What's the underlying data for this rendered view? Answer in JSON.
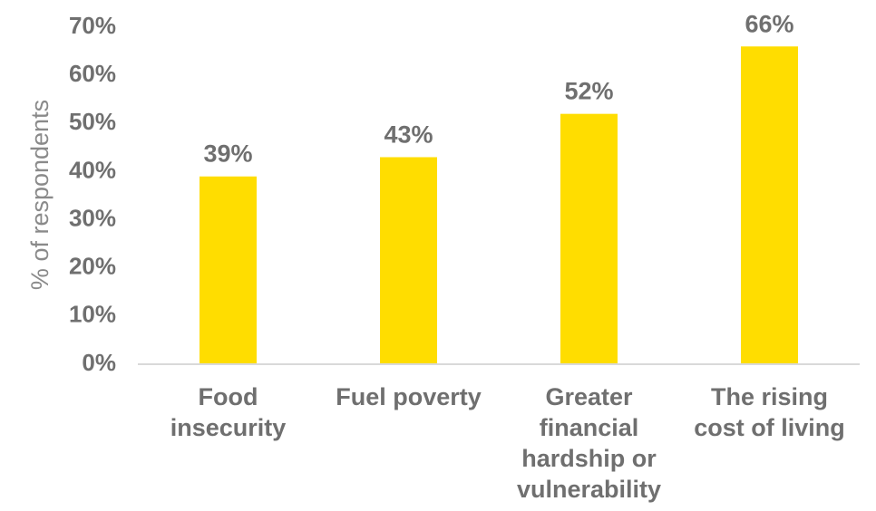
{
  "chart_data": {
    "type": "bar",
    "title": "",
    "xlabel": "",
    "ylabel": "% of respondents",
    "categories": [
      [
        "Food",
        "insecurity"
      ],
      [
        "Fuel poverty"
      ],
      [
        "Greater",
        "financial",
        "hardship or",
        "vulnerability"
      ],
      [
        "The rising",
        "cost of living"
      ]
    ],
    "values": [
      39,
      43,
      52,
      66
    ],
    "data_labels": [
      "39%",
      "43%",
      "52%",
      "66%"
    ],
    "ylim": [
      0,
      70
    ],
    "yticks": [
      0,
      10,
      20,
      30,
      40,
      50,
      60,
      70
    ],
    "ytick_labels": [
      "0%",
      "10%",
      "20%",
      "30%",
      "40%",
      "50%",
      "60%",
      "70%"
    ],
    "grid": false,
    "legend": "none",
    "bar_color": "#FFDD00",
    "axis_color": "#d9d9d9",
    "text_color": "#6f6f6f"
  }
}
